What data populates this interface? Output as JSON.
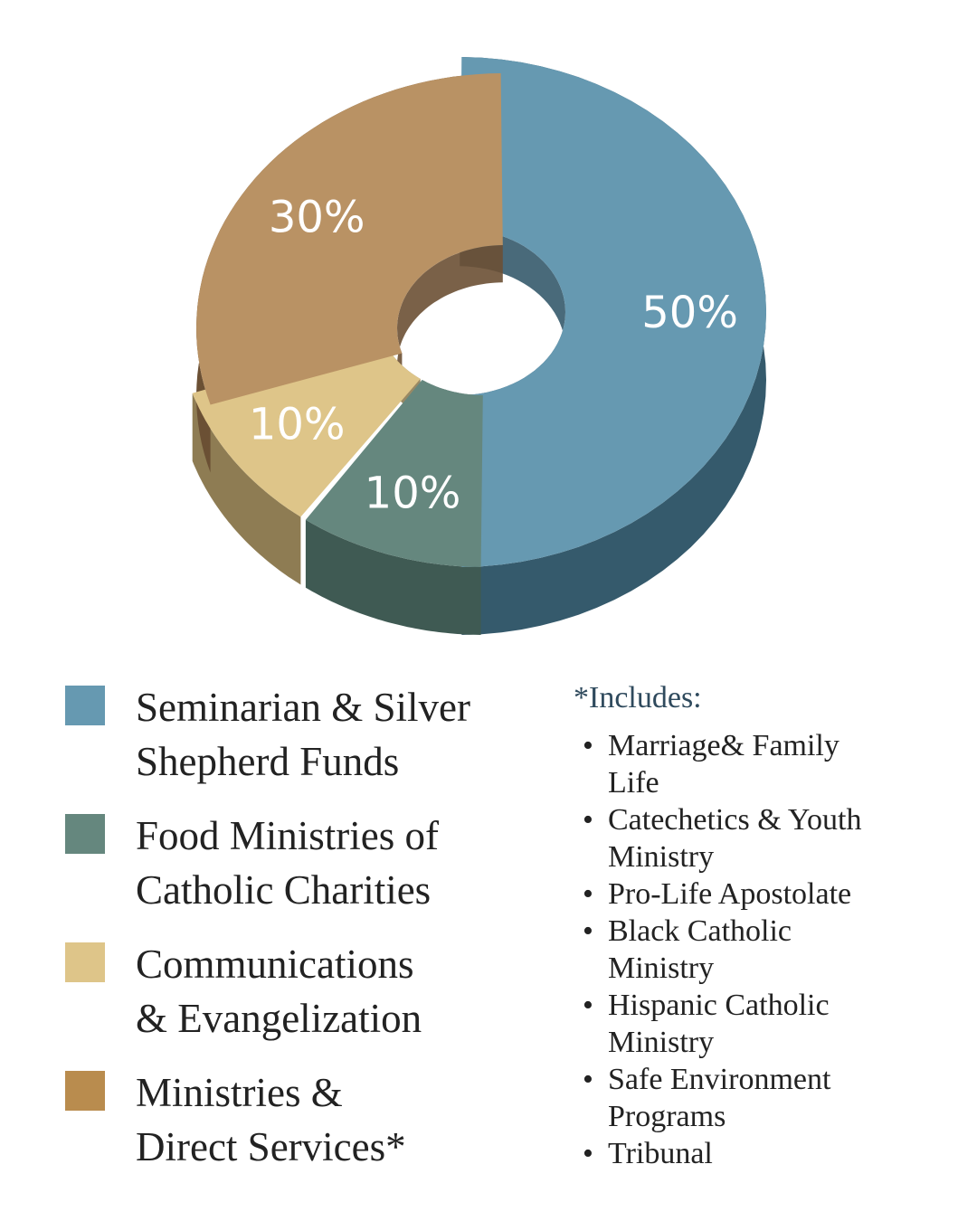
{
  "colors": {
    "seminarian": "#6699b1",
    "seminarian_dark": "#355a6c",
    "food": "#65877e",
    "food_dark": "#3f5a53",
    "communications": "#dec589",
    "communications_dark": "#8e7c53",
    "ministries": "#b99264",
    "ministries_dark": "#6b5034",
    "ministries_swatch": "#b98c4e"
  },
  "chart_data": {
    "type": "pie",
    "style": "3d-donut",
    "slices": [
      {
        "label": "Seminarian & Silver Shepherd Funds",
        "value": 50,
        "display": "50%"
      },
      {
        "label": "Food Ministries of Catholic Charities",
        "value": 10,
        "display": "10%"
      },
      {
        "label": "Communications & Evangelization",
        "value": 10,
        "display": "10%"
      },
      {
        "label": "Ministries & Direct Services*",
        "value": 30,
        "display": "30%"
      }
    ],
    "legend_position": "bottom-left"
  },
  "legend": {
    "items": [
      {
        "label": "Seminarian & Silver\nShepherd Funds"
      },
      {
        "label": "Food Ministries of\nCatholic Charities"
      },
      {
        "label": "Communications\n& Evangelization"
      },
      {
        "label": "Ministries &\nDirect Services*"
      }
    ]
  },
  "includes": {
    "title": "*Includes:",
    "items": [
      "Marriage& Family\nLife",
      "Catechetics & Youth\nMinistry",
      "Pro-Life Apostolate",
      "Black Catholic\nMinistry",
      "Hispanic Catholic\nMinistry",
      "Safe Environment\nPrograms",
      "Tribunal"
    ]
  }
}
